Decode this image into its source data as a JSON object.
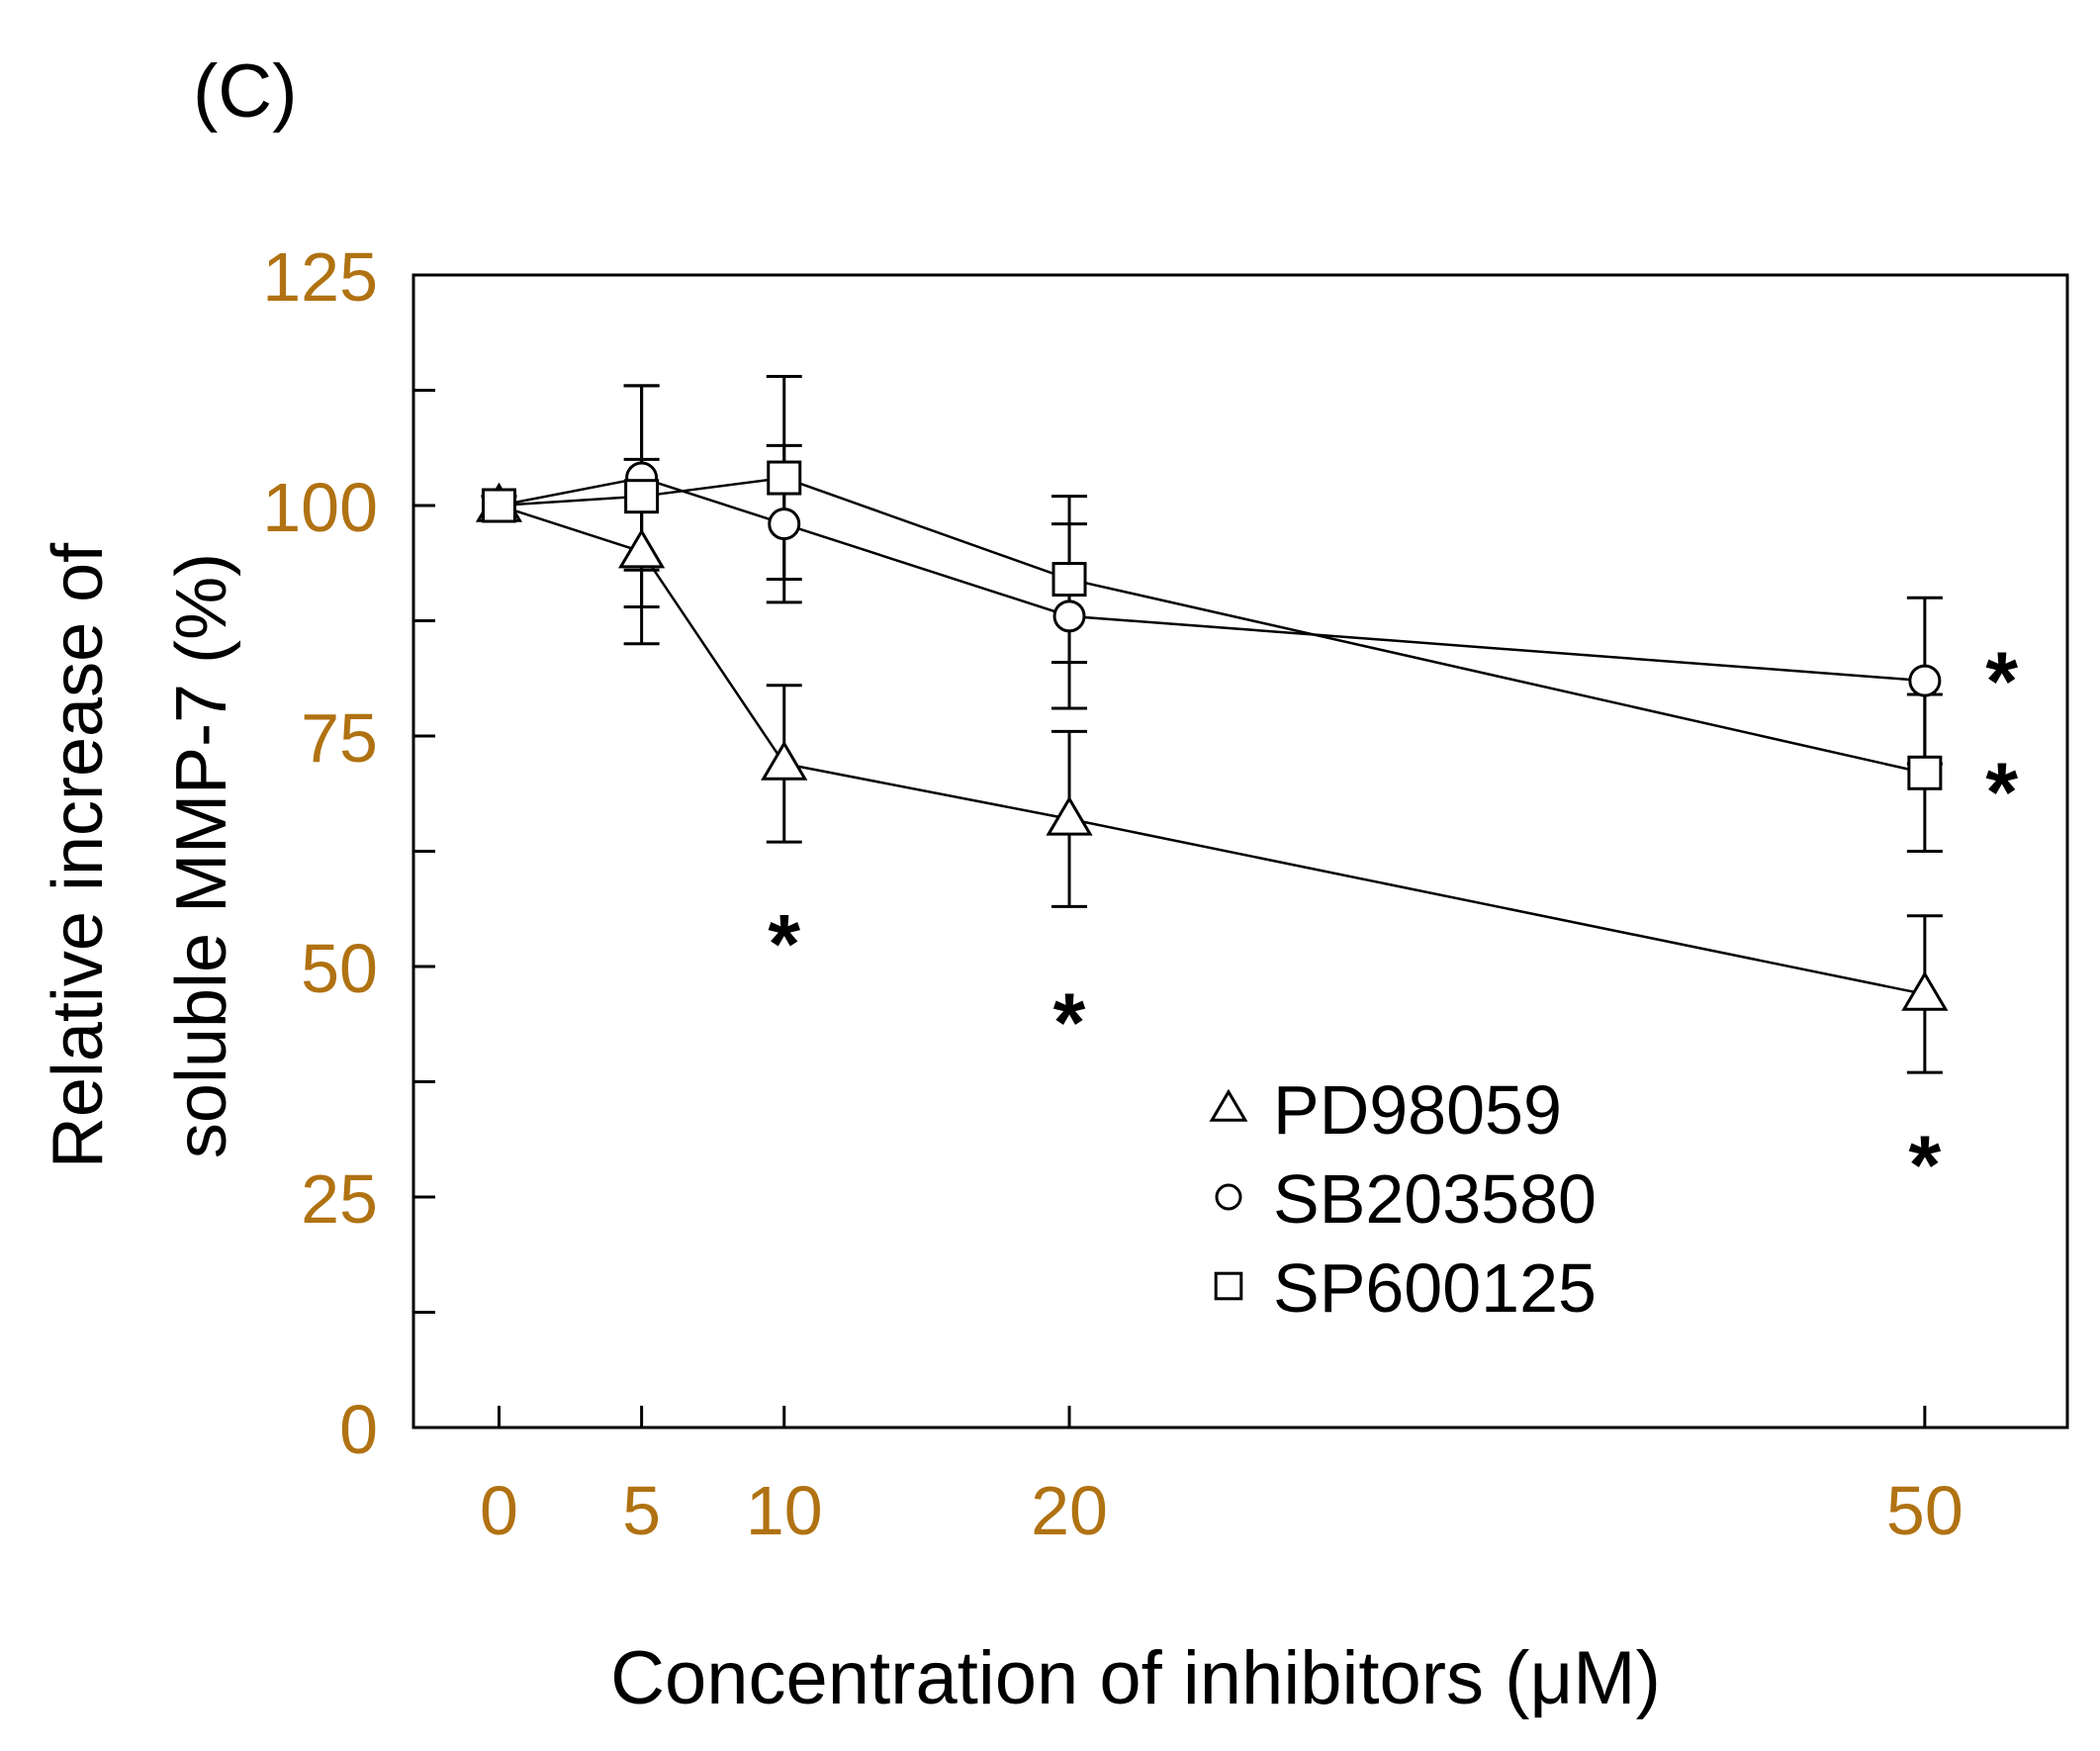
{
  "panel_label": "(C)",
  "chart_data": {
    "type": "line",
    "title": "",
    "xlabel": "Concentration of inhibitors (μM)",
    "ylabel": "Relative increase of soluble MMP-7 (%)",
    "ylabel_lines": [
      "Relative increase of",
      "soluble MMP-7 (%)"
    ],
    "x": [
      0,
      5,
      10,
      20,
      50
    ],
    "xticks": [
      0,
      5,
      10,
      20,
      50
    ],
    "xtick_labels": [
      "0",
      "5",
      "10",
      "20",
      "50"
    ],
    "xlim": [
      -3,
      55
    ],
    "ylim": [
      0,
      125
    ],
    "yticks_labeled": [
      0,
      25,
      50,
      75,
      100,
      125
    ],
    "ytick_labels": [
      "0",
      "25",
      "50",
      "75",
      "100",
      "125"
    ],
    "yticks_minor": [
      12.5,
      37.5,
      62.5,
      87.5,
      112.5
    ],
    "grid": false,
    "legend_position": "bottom-center",
    "series": [
      {
        "name": "PD98059",
        "marker": "triangle",
        "values": [
          100,
          95,
          72,
          66,
          47
        ],
        "errors": [
          1,
          10,
          8.5,
          9.5,
          8.5
        ]
      },
      {
        "name": "SB203580",
        "marker": "circle",
        "values": [
          100,
          103,
          98,
          88,
          81
        ],
        "errors": [
          1,
          10,
          8.5,
          10,
          9
        ]
      },
      {
        "name": "SP600125",
        "marker": "square",
        "values": [
          100,
          101,
          103,
          92,
          71
        ],
        "errors": [
          1,
          12,
          11,
          9,
          8.5
        ]
      }
    ],
    "annotations": [
      {
        "text": "*",
        "x": 10,
        "y": 53,
        "meaning": "significant"
      },
      {
        "text": "*",
        "x": 20,
        "y": 44.5,
        "meaning": "significant"
      },
      {
        "text": "*",
        "x": 50,
        "y": 29,
        "meaning": "significant"
      },
      {
        "text": "*",
        "x": 52.7,
        "y": 81.5,
        "meaning": "significant"
      },
      {
        "text": "*",
        "x": 52.7,
        "y": 69.5,
        "meaning": "significant"
      }
    ]
  }
}
